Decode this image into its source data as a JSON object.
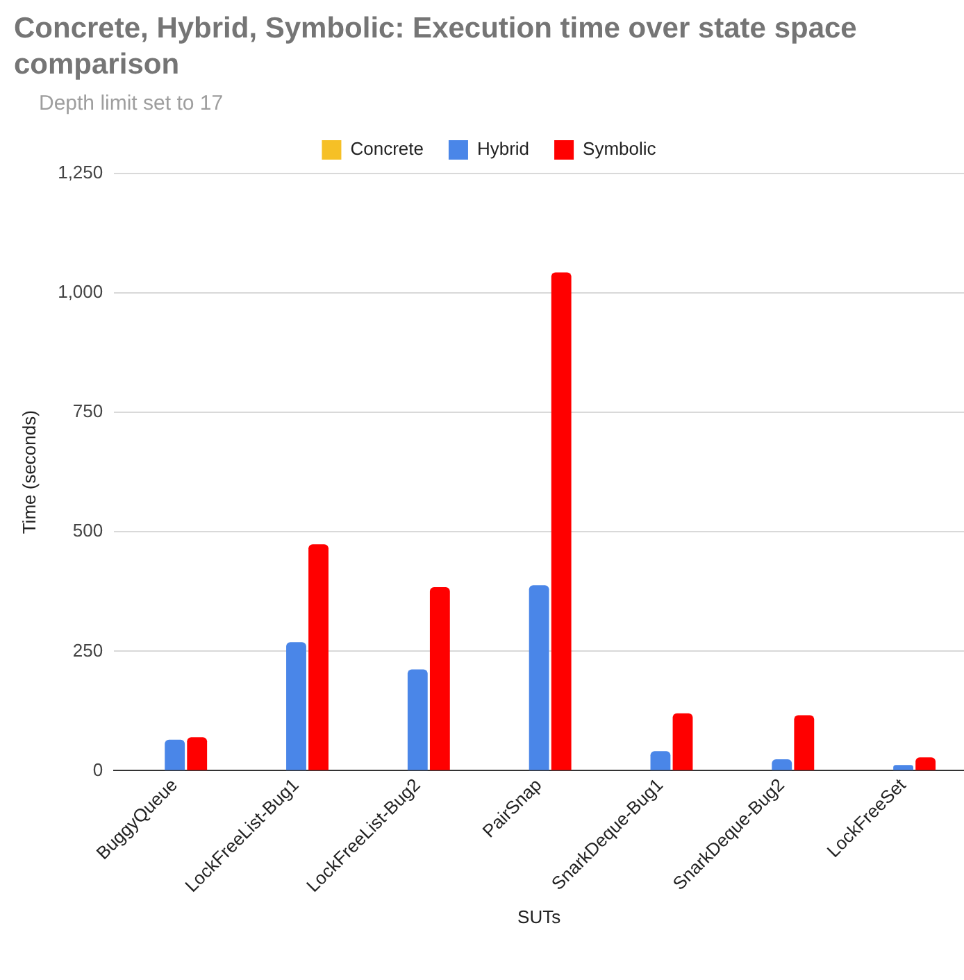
{
  "chart_data": {
    "type": "bar",
    "title": "Concrete, Hybrid, Symbolic: Execution time over state space comparison",
    "subtitle": "Depth limit set to 17",
    "xlabel": "SUTs",
    "ylabel": "Time (seconds)",
    "categories": [
      "BuggyQueue",
      "LockFreeList-Bug1",
      "LockFreeList-Bug2",
      "PairSnap",
      "SnarkDeque-Bug1",
      "SnarkDeque-Bug2",
      "LockFreeSet"
    ],
    "series": [
      {
        "name": "Concrete",
        "color": "#f6c026",
        "values": [
          null,
          null,
          null,
          null,
          null,
          null,
          null
        ]
      },
      {
        "name": "Hybrid",
        "color": "#4a86e8",
        "values": [
          65,
          269,
          212,
          388,
          41,
          24,
          12
        ]
      },
      {
        "name": "Symbolic",
        "color": "#ff0000",
        "values": [
          70,
          474,
          384,
          1043,
          120,
          116,
          28
        ]
      }
    ],
    "ylim": [
      0,
      1250
    ],
    "yticks": [
      0,
      250,
      500,
      750,
      {
        "value": 1000,
        "label": "1,000"
      },
      {
        "value": 1250,
        "label": "1,250"
      }
    ],
    "grid": "y",
    "legend": "top"
  }
}
